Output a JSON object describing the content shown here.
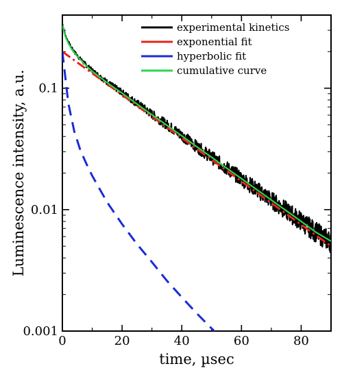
{
  "chart_data": {
    "type": "line",
    "title": "",
    "xlabel": "time, µsec",
    "ylabel": "Luminescence intensity, a.u.",
    "xlim": [
      0,
      90
    ],
    "ylim": [
      0.001,
      0.4
    ],
    "yscale": "log",
    "x_ticks": [
      0,
      20,
      40,
      60,
      80
    ],
    "x_tick_labels": [
      "0",
      "20",
      "40",
      "60",
      "80"
    ],
    "y_ticks": [
      0.001,
      0.01,
      0.1
    ],
    "y_tick_labels": [
      "0.001",
      "0.01",
      "0.1"
    ],
    "grid": false,
    "legend_position": "top-right",
    "series": [
      {
        "name": "experimental kinetics",
        "color": "#000000",
        "style": "noisy-solid",
        "x": [
          0,
          1,
          2,
          3,
          5,
          8,
          10,
          15,
          20,
          25,
          30,
          35,
          40,
          45,
          50,
          55,
          60,
          65,
          70,
          75,
          80,
          85,
          90
        ],
        "y": [
          0.34,
          0.27,
          0.24,
          0.215,
          0.185,
          0.155,
          0.14,
          0.112,
          0.092,
          0.075,
          0.061,
          0.05,
          0.041,
          0.033,
          0.027,
          0.022,
          0.018,
          0.0147,
          0.012,
          0.0098,
          0.008,
          0.0065,
          0.0054
        ]
      },
      {
        "name": "exponential fit",
        "color": "#e8231b",
        "style": "dash-dot",
        "x": [
          0,
          90
        ],
        "y": [
          0.2,
          0.005
        ]
      },
      {
        "name": "hyperbolic fit",
        "color": "#1a2bd6",
        "style": "dashed",
        "x": [
          0,
          2,
          4,
          6,
          8,
          10,
          15,
          20,
          25,
          30,
          35,
          40,
          45,
          50,
          52
        ],
        "y": [
          0.2,
          0.075,
          0.044,
          0.031,
          0.024,
          0.019,
          0.0115,
          0.0076,
          0.0052,
          0.0037,
          0.0026,
          0.0019,
          0.0014,
          0.00105,
          0.00094
        ]
      },
      {
        "name": "cumulative curve",
        "color": "#2bd64a",
        "style": "solid",
        "x": [
          0,
          1,
          2,
          3,
          5,
          8,
          10,
          15,
          20,
          25,
          30,
          35,
          40,
          45,
          50,
          55,
          60,
          65,
          70,
          75,
          80,
          85,
          90
        ],
        "y": [
          0.33,
          0.265,
          0.235,
          0.212,
          0.183,
          0.153,
          0.138,
          0.111,
          0.091,
          0.074,
          0.0605,
          0.0495,
          0.0405,
          0.033,
          0.027,
          0.022,
          0.018,
          0.0147,
          0.012,
          0.0098,
          0.008,
          0.0065,
          0.0055
        ]
      }
    ]
  }
}
